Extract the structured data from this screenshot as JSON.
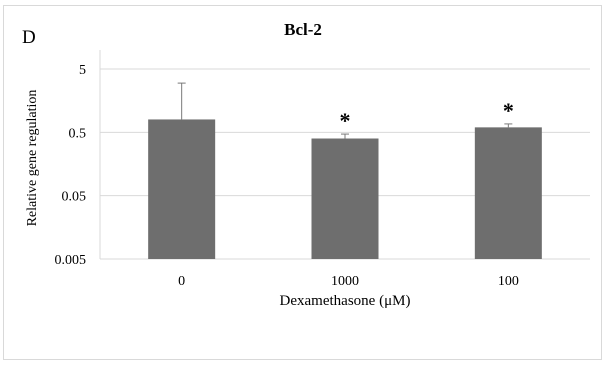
{
  "panel_label": "D",
  "chart_data": {
    "type": "bar",
    "title": "Bcl-2",
    "xlabel": "Dexamethasone (μM)",
    "ylabel": "Relative gene regulation",
    "yscale": "log",
    "ylim": [
      0.005,
      10
    ],
    "yticks": [
      "0.005",
      "0.05",
      "0.5",
      "5"
    ],
    "categories": [
      "0",
      "1000",
      "100"
    ],
    "values": [
      0.8,
      0.4,
      0.6
    ],
    "error_upper": [
      3.0,
      0.47,
      0.68
    ],
    "significance": [
      "",
      "*",
      "*"
    ],
    "colors": {
      "bar": "#6e6e6e",
      "axis": "#d9d9d9",
      "grid": "#d9d9d9",
      "error": "#7a7a7a"
    }
  }
}
